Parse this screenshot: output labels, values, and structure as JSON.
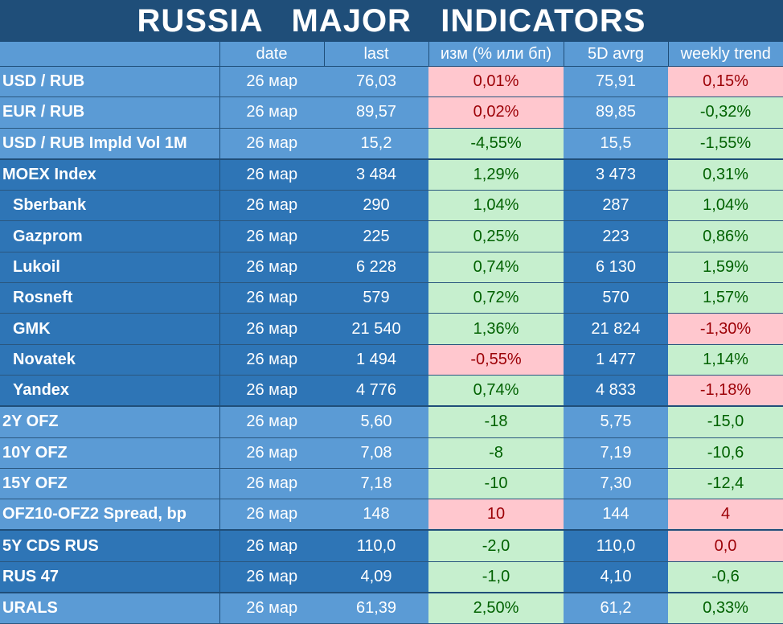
{
  "title": "RUSSIA   MAJOR   INDICATORS",
  "headers": [
    "",
    "date",
    "last",
    "изм (% или бп)",
    "5D avrg",
    "weekly trend"
  ],
  "rows": [
    {
      "name": "USD / RUB",
      "date": "26 мар",
      "last": "76,03",
      "chg": "0,01%",
      "chg_sign": "neg",
      "avg": "75,91",
      "wk": "0,15%",
      "wk_sign": "neg",
      "group": "g-light"
    },
    {
      "name": "EUR / RUB",
      "date": "26 мар",
      "last": "89,57",
      "chg": "0,02%",
      "chg_sign": "neg",
      "avg": "89,85",
      "wk": "-0,32%",
      "wk_sign": "pos",
      "group": "g-light"
    },
    {
      "name": "USD / RUB Impld Vol 1M",
      "date": "26 мар",
      "last": "15,2",
      "chg": "-4,55%",
      "chg_sign": "pos",
      "avg": "15,5",
      "wk": "-1,55%",
      "wk_sign": "pos",
      "group": "g-light"
    },
    {
      "name": "MOEX Index",
      "date": "26 мар",
      "last": "3 484",
      "chg": "1,29%",
      "chg_sign": "pos",
      "avg": "3 473",
      "wk": "0,31%",
      "wk_sign": "pos",
      "group": "g-dark",
      "sep": true
    },
    {
      "name": "Sberbank",
      "date": "26 мар",
      "last": "290",
      "chg": "1,04%",
      "chg_sign": "pos",
      "avg": "287",
      "wk": "1,04%",
      "wk_sign": "pos",
      "group": "g-dark",
      "indent": true
    },
    {
      "name": "Gazprom",
      "date": "26 мар",
      "last": "225",
      "chg": "0,25%",
      "chg_sign": "pos",
      "avg": "223",
      "wk": "0,86%",
      "wk_sign": "pos",
      "group": "g-dark",
      "indent": true
    },
    {
      "name": "Lukoil",
      "date": "26 мар",
      "last": "6 228",
      "chg": "0,74%",
      "chg_sign": "pos",
      "avg": "6 130",
      "wk": "1,59%",
      "wk_sign": "pos",
      "group": "g-dark",
      "indent": true
    },
    {
      "name": "Rosneft",
      "date": "26 мар",
      "last": "579",
      "chg": "0,72%",
      "chg_sign": "pos",
      "avg": "570",
      "wk": "1,57%",
      "wk_sign": "pos",
      "group": "g-dark",
      "indent": true
    },
    {
      "name": "GMK",
      "date": "26 мар",
      "last": "21 540",
      "chg": "1,36%",
      "chg_sign": "pos",
      "avg": "21 824",
      "wk": "-1,30%",
      "wk_sign": "neg",
      "group": "g-dark",
      "indent": true
    },
    {
      "name": "Novatek",
      "date": "26 мар",
      "last": "1 494",
      "chg": "-0,55%",
      "chg_sign": "neg",
      "avg": "1 477",
      "wk": "1,14%",
      "wk_sign": "pos",
      "group": "g-dark",
      "indent": true
    },
    {
      "name": "Yandex",
      "date": "26 мар",
      "last": "4 776",
      "chg": "0,74%",
      "chg_sign": "pos",
      "avg": "4 833",
      "wk": "-1,18%",
      "wk_sign": "neg",
      "group": "g-dark",
      "indent": true
    },
    {
      "name": "2Y OFZ",
      "date": "26 мар",
      "last": "5,60",
      "chg": "-18",
      "chg_sign": "pos",
      "avg": "5,75",
      "wk": "-15,0",
      "wk_sign": "pos",
      "group": "g-light",
      "sep": true
    },
    {
      "name": "10Y OFZ",
      "date": "26 мар",
      "last": "7,08",
      "chg": "-8",
      "chg_sign": "pos",
      "avg": "7,19",
      "wk": "-10,6",
      "wk_sign": "pos",
      "group": "g-light"
    },
    {
      "name": "15Y OFZ",
      "date": "26 мар",
      "last": "7,18",
      "chg": "-10",
      "chg_sign": "pos",
      "avg": "7,30",
      "wk": "-12,4",
      "wk_sign": "pos",
      "group": "g-light"
    },
    {
      "name": "OFZ10-OFZ2 Spread, bp",
      "date": "26 мар",
      "last": "148",
      "chg": "10",
      "chg_sign": "neg",
      "avg": "144",
      "wk": "4",
      "wk_sign": "neg",
      "group": "g-light"
    },
    {
      "name": "5Y CDS RUS",
      "date": "26 мар",
      "last": "110,0",
      "chg": "-2,0",
      "chg_sign": "pos",
      "avg": "110,0",
      "wk": "0,0",
      "wk_sign": "neg",
      "group": "g-dark",
      "sep": true
    },
    {
      "name": "RUS 47",
      "date": "26 мар",
      "last": "4,09",
      "chg": "-1,0",
      "chg_sign": "pos",
      "avg": "4,10",
      "wk": "-0,6",
      "wk_sign": "pos",
      "group": "g-dark"
    },
    {
      "name": "URALS",
      "date": "26 мар",
      "last": "61,39",
      "chg": "2,50%",
      "chg_sign": "pos",
      "avg": "61,2",
      "wk": "0,33%",
      "wk_sign": "pos",
      "group": "g-light",
      "sep": true
    }
  ],
  "colors": {
    "title_bg": "#1f4e79",
    "header_bg": "#5b9bd5",
    "dark_bg": "#2e75b6",
    "positive_bg": "#c6efce",
    "positive_fg": "#006100",
    "negative_bg": "#ffc7ce",
    "negative_fg": "#9c0006"
  }
}
